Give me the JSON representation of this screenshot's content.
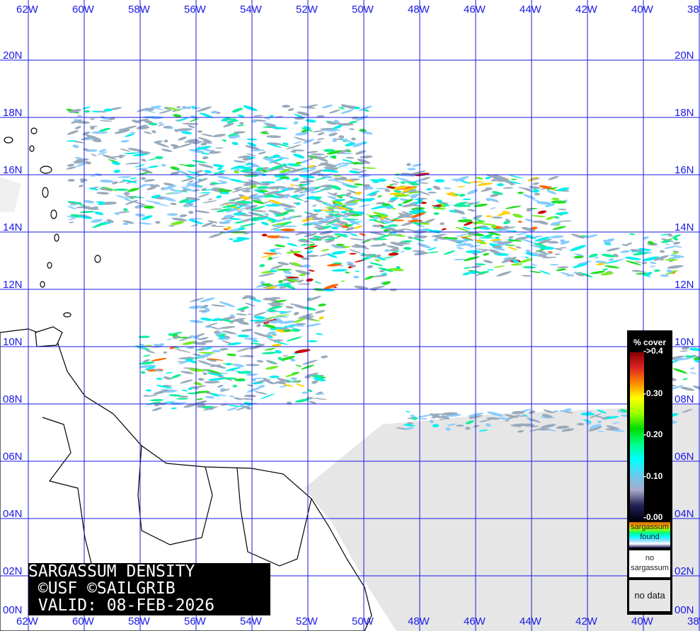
{
  "map": {
    "title_lines": [
      "SARGASSUM DENSITY",
      " ©USF ©SAILGRIB",
      " VALID: 08-FEB-2026"
    ],
    "longitude_labels": [
      "62W",
      "60W",
      "58W",
      "56W",
      "54W",
      "52W",
      "50W",
      "48W",
      "46W",
      "44W",
      "42W",
      "40W",
      "38W"
    ],
    "latitude_labels": [
      "20N",
      "18N",
      "16N",
      "14N",
      "12N",
      "10N",
      "08N",
      "06N",
      "04N",
      "02N",
      "00N"
    ],
    "grid_color": "#1a1ae6"
  },
  "legend": {
    "title": "% cover",
    "ticks": [
      "->0.4",
      "-0.30",
      "-0.20",
      "-0.10",
      "-0.00"
    ],
    "found_label": "sargassum found",
    "no_sargassum_label": "no sargassum",
    "no_data_label": "no data",
    "no_data_color": "#e6e6e6"
  }
}
